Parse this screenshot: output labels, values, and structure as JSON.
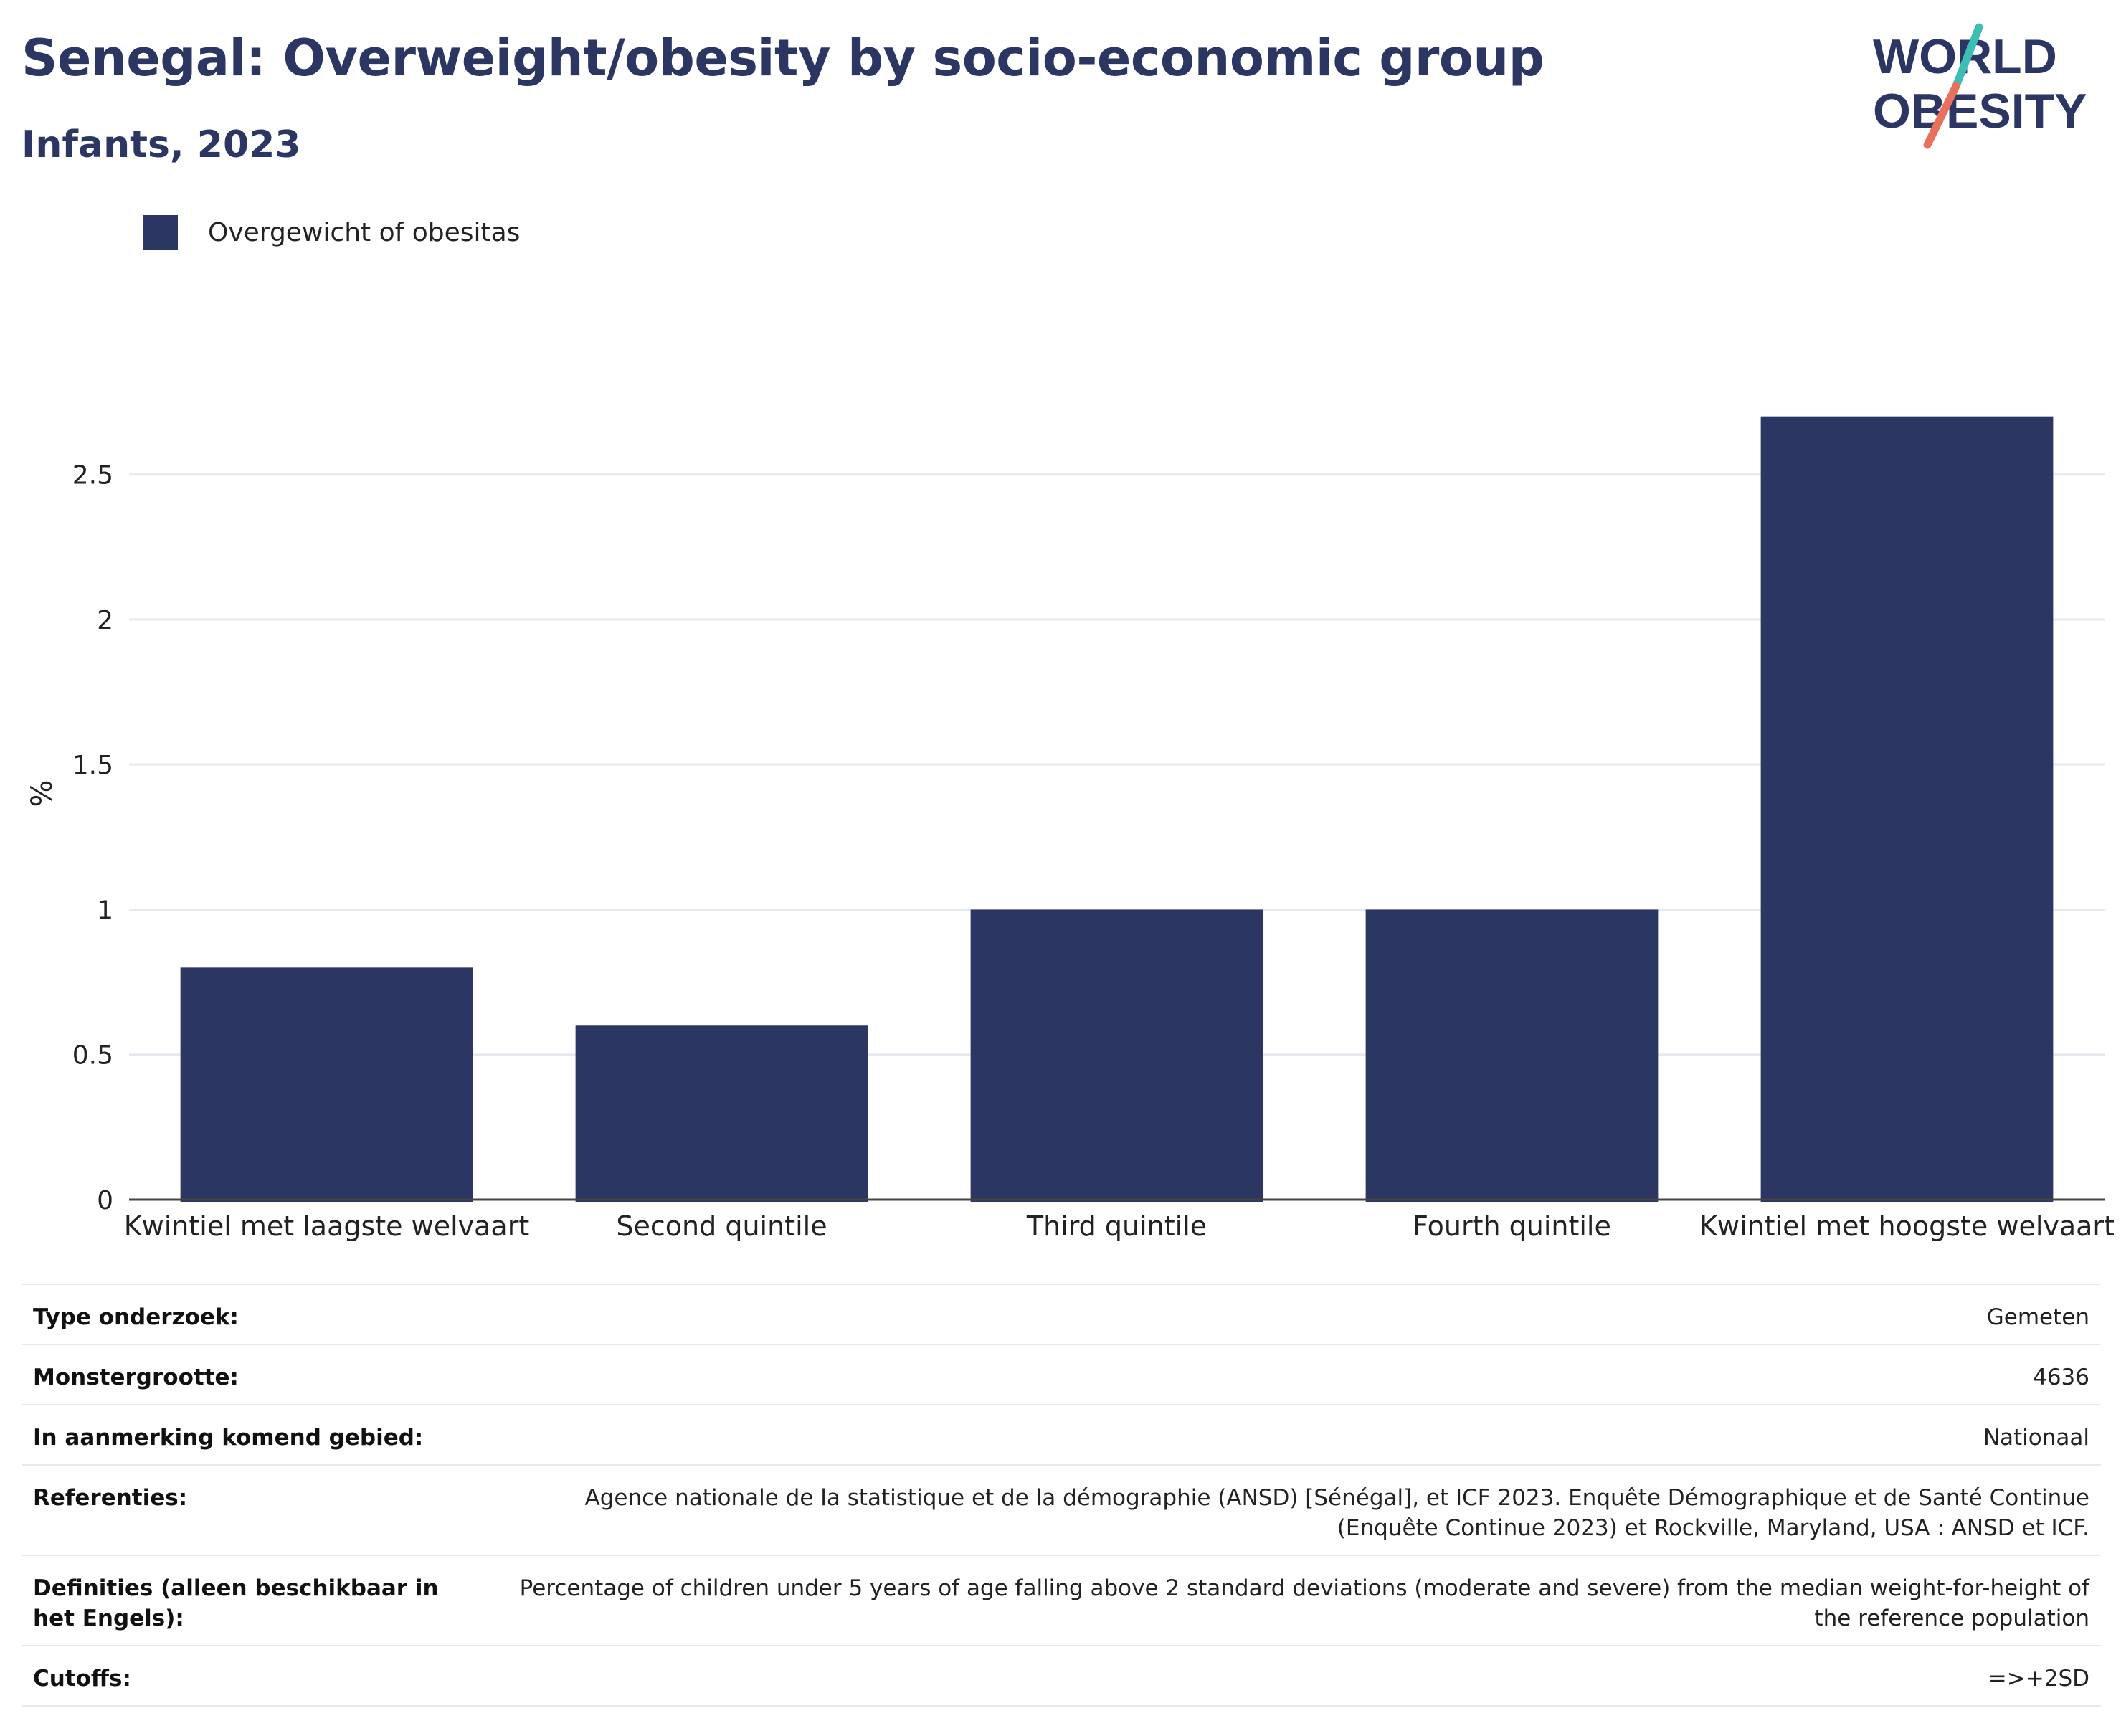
{
  "header": {
    "title": "Senegal: Overweight/obesity by socio-economic group",
    "subtitle": "Infants, 2023"
  },
  "logo": {
    "line1": "WORLD",
    "line2": "OBESITY",
    "slash_colors": [
      "#3bbfb5",
      "#e8705c"
    ]
  },
  "legend": {
    "label": "Overgewicht of obesitas",
    "color": "#2b3663"
  },
  "chart_data": {
    "type": "bar",
    "categories": [
      "Kwintiel met laagste welvaart",
      "Second quintile",
      "Third quintile",
      "Fourth quintile",
      "Kwintiel met hoogste welvaart"
    ],
    "series": [
      {
        "name": "Overgewicht of obesitas",
        "values": [
          0.8,
          0.6,
          1.0,
          1.0,
          2.7
        ]
      }
    ],
    "title": "",
    "xlabel": "",
    "ylabel": "%",
    "ylim": [
      0,
      2.85
    ],
    "yticks": [
      0,
      0.5,
      1,
      1.5,
      2,
      2.5
    ],
    "ytick_labels": [
      "0",
      "0.5",
      "1",
      "1.5",
      "2",
      "2.5"
    ],
    "grid": true,
    "legend_position": "top-left",
    "bar_color": "#2b3663"
  },
  "info": {
    "rows": [
      {
        "label": "Type onderzoek:",
        "value": "Gemeten"
      },
      {
        "label": "Monstergrootte:",
        "value": "4636"
      },
      {
        "label": "In aanmerking komend gebied:",
        "value": "Nationaal"
      },
      {
        "label": "Referenties:",
        "value": "Agence nationale de la statistique et de la démographie (ANSD) [Sénégal], et ICF 2023. Enquête Démographique et de Santé Continue (Enquête Continue 2023) et Rockville, Maryland, USA : ANSD et ICF."
      },
      {
        "label": "Definities (alleen beschikbaar in het Engels):",
        "value": "Percentage of children under 5 years of age falling above 2 standard deviations (moderate and severe) from the median weight-for-height of the reference population"
      },
      {
        "label": "Cutoffs:",
        "value": "=>+2SD"
      }
    ]
  }
}
